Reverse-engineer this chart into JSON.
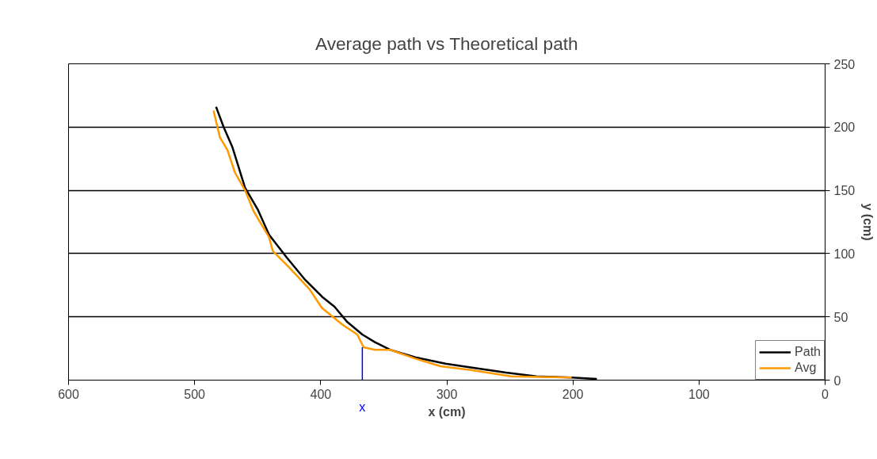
{
  "chart_data": {
    "type": "line",
    "title": "Average path vs Theoretical path",
    "xlabel": "x (cm)",
    "ylabel": "y (cm)",
    "xlim": [
      600,
      0
    ],
    "xticks": [
      600,
      500,
      400,
      300,
      200,
      100,
      0
    ],
    "ylim": [
      0,
      250
    ],
    "yticks": [
      0,
      50,
      100,
      150,
      200,
      250
    ],
    "grid": "y",
    "legend": "bottom right",
    "series": [
      {
        "name": "Path",
        "color": "#000000",
        "x": [
          483,
          477,
          470,
          460,
          450,
          441,
          427,
          413,
          399,
          389,
          379,
          367,
          357,
          345,
          325,
          301,
          281,
          253,
          229,
          201,
          181
        ],
        "values": [
          216,
          200,
          184,
          152,
          135,
          115,
          97,
          80,
          66,
          58,
          46,
          36,
          30,
          24,
          18,
          13,
          10,
          6,
          3,
          2,
          1
        ]
      },
      {
        "name": "Avg",
        "color": "#ff9900",
        "x": [
          485,
          480,
          474,
          468,
          460,
          453,
          441,
          438,
          425,
          409,
          399,
          383,
          371,
          366,
          357,
          345,
          325,
          305,
          281,
          249,
          201
        ],
        "values": [
          213,
          192,
          182,
          164,
          150,
          133,
          113,
          102,
          89,
          72,
          57,
          44,
          36,
          26,
          24,
          24,
          17,
          11,
          8,
          3,
          2
        ]
      },
      {
        "color": "#0000ff",
        "x": [
          367,
          367
        ],
        "values": [
          0,
          26
        ]
      }
    ],
    "annotations": [
      {
        "text": "x",
        "x": 367,
        "y": 0
      }
    ]
  }
}
